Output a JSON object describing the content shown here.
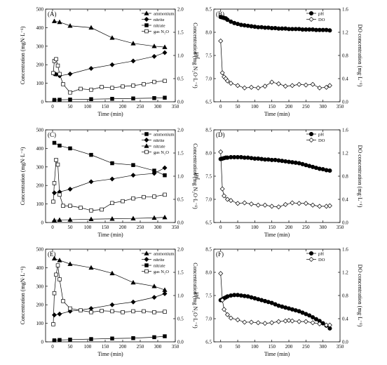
{
  "chart_data": [
    {
      "panel": "(A)",
      "type": "line",
      "xlabel": "Time (min)",
      "ylabel_left": "Concentration (mgN·L⁻¹)",
      "ylabel_right": "Concentration (mg N₂O·L⁻¹)",
      "xlim": [
        -20,
        350
      ],
      "xticks": [
        0,
        50,
        100,
        150,
        200,
        250,
        300,
        350
      ],
      "ylim_left": [
        0,
        500
      ],
      "yticks_left": [
        0,
        100,
        200,
        300,
        400,
        500
      ],
      "ylim_right": [
        0,
        2.0
      ],
      "yticks_right": [
        "0.0",
        "0.5",
        "1.0",
        "1.5",
        "2.0"
      ],
      "legend_position": "top-right",
      "series": [
        {
          "name": "ammonium",
          "marker": "triangle-filled",
          "axis": "left",
          "x": [
            5,
            20,
            50,
            110,
            170,
            230,
            290,
            320
          ],
          "y": [
            435,
            430,
            410,
            400,
            345,
            315,
            300,
            295
          ]
        },
        {
          "name": "nitrite",
          "marker": "diamond-filled",
          "axis": "left",
          "x": [
            5,
            10,
            20,
            50,
            110,
            170,
            230,
            290,
            320
          ],
          "y": [
            150,
            148,
            140,
            150,
            180,
            200,
            220,
            245,
            265
          ]
        },
        {
          "name": "nitrate",
          "marker": "square-filled",
          "axis": "left",
          "x": [
            5,
            20,
            50,
            110,
            170,
            230,
            290,
            320
          ],
          "y": [
            10,
            11,
            12,
            14,
            16,
            18,
            20,
            22
          ]
        },
        {
          "name": "gas N₂O",
          "marker": "square-open",
          "axis": "right",
          "x": [
            2,
            5,
            10,
            15,
            20,
            30,
            50,
            80,
            110,
            140,
            170,
            200,
            230,
            260,
            290,
            320
          ],
          "y": [
            0.62,
            0.88,
            0.92,
            0.78,
            0.6,
            0.38,
            0.2,
            0.28,
            0.26,
            0.32,
            0.3,
            0.33,
            0.35,
            0.38,
            0.43,
            0.45
          ]
        }
      ]
    },
    {
      "panel": "(B)",
      "type": "line",
      "xlabel": "Time (min)",
      "ylabel_left": "pH",
      "ylabel_right": "DO concentration (mg·L⁻¹)",
      "xlim": [
        -20,
        350
      ],
      "xticks": [
        0,
        50,
        100,
        150,
        200,
        250,
        300,
        350
      ],
      "ylim_left": [
        6.5,
        8.5
      ],
      "yticks_left": [
        "6.5",
        "7.0",
        "7.5",
        "8.0",
        "8.5"
      ],
      "ylim_right": [
        0,
        1.6
      ],
      "yticks_right": [
        "0.0",
        "0.4",
        "0.8",
        "1.2",
        "1.6"
      ],
      "legend_position": "top-right",
      "series": [
        {
          "name": "pH",
          "marker": "circle-filled",
          "axis": "left",
          "x": [
            0,
            5,
            10,
            15,
            20,
            30,
            40,
            50,
            60,
            70,
            80,
            90,
            100,
            110,
            120,
            130,
            140,
            150,
            160,
            170,
            180,
            190,
            200,
            210,
            220,
            230,
            240,
            250,
            260,
            270,
            280,
            290,
            300,
            310,
            320
          ],
          "y": [
            8.33,
            8.32,
            8.31,
            8.3,
            8.27,
            8.23,
            8.2,
            8.18,
            8.16,
            8.15,
            8.14,
            8.13,
            8.12,
            8.11,
            8.11,
            8.1,
            8.1,
            8.09,
            8.09,
            8.08,
            8.08,
            8.08,
            8.07,
            8.07,
            8.07,
            8.07,
            8.06,
            8.06,
            8.06,
            8.06,
            8.05,
            8.05,
            8.05,
            8.05,
            8.04
          ]
        },
        {
          "name": "DO",
          "marker": "diamond-open",
          "axis": "right",
          "x": [
            0,
            5,
            10,
            15,
            20,
            30,
            50,
            70,
            90,
            110,
            130,
            150,
            170,
            190,
            210,
            230,
            250,
            270,
            290,
            310,
            320
          ],
          "y": [
            1.05,
            0.5,
            0.43,
            0.4,
            0.36,
            0.32,
            0.28,
            0.24,
            0.25,
            0.24,
            0.27,
            0.34,
            0.31,
            0.27,
            0.28,
            0.3,
            0.29,
            0.3,
            0.24,
            0.25,
            0.28
          ]
        }
      ]
    },
    {
      "panel": "(C)",
      "type": "line",
      "xlabel": "Time (min)",
      "ylabel_left": "Concentration (mgN·L⁻¹)",
      "ylabel_right": "Concentration (mg N₂O·L⁻¹)",
      "xlim": [
        -20,
        350
      ],
      "xticks": [
        0,
        50,
        100,
        150,
        200,
        250,
        300,
        350
      ],
      "ylim_left": [
        0,
        500
      ],
      "yticks_left": [
        0,
        100,
        200,
        300,
        400,
        500
      ],
      "ylim_right": [
        0,
        2.0
      ],
      "yticks_right": [
        "0.0",
        "0.5",
        "1.0",
        "1.5",
        "2.0"
      ],
      "legend_position": "top-right",
      "series": [
        {
          "name": "ammonium",
          "marker": "square-filled",
          "axis": "left",
          "x": [
            5,
            20,
            50,
            110,
            170,
            230,
            290,
            320
          ],
          "y": [
            430,
            415,
            400,
            365,
            320,
            310,
            280,
            255
          ]
        },
        {
          "name": "nitrite",
          "marker": "diamond-filled",
          "axis": "left",
          "x": [
            5,
            20,
            50,
            110,
            170,
            230,
            290,
            320
          ],
          "y": [
            160,
            165,
            180,
            220,
            235,
            255,
            265,
            295
          ]
        },
        {
          "name": "nitrate",
          "marker": "triangle-filled",
          "axis": "left",
          "x": [
            5,
            20,
            50,
            110,
            170,
            230,
            290,
            320
          ],
          "y": [
            12,
            14,
            15,
            18,
            20,
            22,
            25,
            28
          ]
        },
        {
          "name": "gas N₂O",
          "marker": "square-open",
          "axis": "right",
          "x": [
            2,
            5,
            10,
            15,
            20,
            30,
            50,
            80,
            110,
            140,
            170,
            200,
            230,
            260,
            290,
            320
          ],
          "y": [
            0.45,
            0.85,
            1.35,
            1.25,
            0.6,
            0.36,
            0.36,
            0.32,
            0.26,
            0.28,
            0.42,
            0.46,
            0.52,
            0.55,
            0.56,
            0.6
          ]
        }
      ]
    },
    {
      "panel": "(D)",
      "type": "line",
      "xlabel": "Time (min)",
      "ylabel_left": "pH",
      "ylabel_right": "DO concentration (mg·L⁻¹)",
      "xlim": [
        -20,
        350
      ],
      "xticks": [
        0,
        50,
        100,
        150,
        200,
        250,
        300,
        350
      ],
      "ylim_left": [
        6.5,
        8.5
      ],
      "yticks_left": [
        "6.5",
        "7.0",
        "7.5",
        "8.0",
        "8.5"
      ],
      "ylim_right": [
        0,
        1.6
      ],
      "yticks_right": [
        "0.0",
        "0.4",
        "0.8",
        "1.2",
        "1.6"
      ],
      "legend_position": "top-right",
      "series": [
        {
          "name": "pH",
          "marker": "circle-filled",
          "axis": "left",
          "x": [
            0,
            5,
            10,
            15,
            20,
            30,
            40,
            50,
            60,
            70,
            80,
            90,
            100,
            110,
            120,
            130,
            140,
            150,
            160,
            170,
            180,
            190,
            200,
            210,
            220,
            230,
            240,
            250,
            260,
            270,
            280,
            290,
            300,
            310,
            320
          ],
          "y": [
            7.87,
            7.88,
            7.89,
            7.9,
            7.9,
            7.91,
            7.91,
            7.91,
            7.91,
            7.9,
            7.9,
            7.89,
            7.88,
            7.88,
            7.87,
            7.86,
            7.86,
            7.85,
            7.85,
            7.84,
            7.83,
            7.82,
            7.81,
            7.8,
            7.79,
            7.78,
            7.76,
            7.74,
            7.72,
            7.7,
            7.68,
            7.66,
            7.65,
            7.63,
            7.62
          ]
        },
        {
          "name": "DO",
          "marker": "diamond-open",
          "axis": "right",
          "x": [
            0,
            5,
            10,
            20,
            30,
            50,
            70,
            90,
            110,
            130,
            150,
            170,
            190,
            210,
            230,
            250,
            270,
            290,
            310,
            320
          ],
          "y": [
            1.22,
            0.58,
            0.46,
            0.4,
            0.38,
            0.33,
            0.34,
            0.32,
            0.3,
            0.3,
            0.28,
            0.27,
            0.31,
            0.34,
            0.33,
            0.33,
            0.3,
            0.28,
            0.28,
            0.29
          ]
        }
      ]
    },
    {
      "panel": "(E)",
      "type": "line",
      "xlabel": "Time (min)",
      "ylabel_left": "Concentration (mgN·L⁻¹)",
      "ylabel_right": "Concentration (mg N₂O·L⁻¹)",
      "xlim": [
        -20,
        350
      ],
      "xticks": [
        0,
        50,
        100,
        150,
        200,
        250,
        300,
        350
      ],
      "ylim_left": [
        0,
        500
      ],
      "yticks_left": [
        0,
        100,
        200,
        300,
        400,
        500
      ],
      "ylim_right": [
        0,
        2.0
      ],
      "yticks_right": [
        "0.0",
        "0.5",
        "1.0",
        "1.5",
        "2.0"
      ],
      "legend_position": "top-right",
      "series": [
        {
          "name": "ammonium",
          "marker": "triangle-filled",
          "axis": "left",
          "x": [
            5,
            20,
            50,
            110,
            170,
            230,
            290,
            320
          ],
          "y": [
            450,
            440,
            420,
            400,
            370,
            320,
            300,
            280
          ]
        },
        {
          "name": "nitrite",
          "marker": "diamond-filled",
          "axis": "left",
          "x": [
            5,
            20,
            50,
            110,
            170,
            230,
            290,
            320
          ],
          "y": [
            145,
            150,
            165,
            180,
            200,
            215,
            240,
            260
          ]
        },
        {
          "name": "nitrate",
          "marker": "square-filled",
          "axis": "left",
          "x": [
            5,
            20,
            50,
            110,
            170,
            230,
            290,
            320
          ],
          "y": [
            8,
            10,
            12,
            15,
            18,
            20,
            25,
            30
          ]
        },
        {
          "name": "gas N₂O",
          "marker": "square-open",
          "axis": "right",
          "x": [
            2,
            5,
            10,
            15,
            20,
            30,
            50,
            80,
            110,
            140,
            170,
            200,
            230,
            260,
            290,
            320
          ],
          "y": [
            0.38,
            1.05,
            1.45,
            1.65,
            1.35,
            0.88,
            0.72,
            0.68,
            0.64,
            0.67,
            0.66,
            0.64,
            0.66,
            0.66,
            0.64,
            0.65
          ]
        }
      ]
    },
    {
      "panel": "(F)",
      "type": "line",
      "xlabel": "Time (min)",
      "ylabel_left": "pH",
      "ylabel_right": "DO concentration (mg·L⁻¹)",
      "xlim": [
        -20,
        350
      ],
      "xticks": [
        0,
        50,
        100,
        150,
        200,
        250,
        300,
        350
      ],
      "ylim_left": [
        6.5,
        8.5
      ],
      "yticks_left": [
        "6.5",
        "7.0",
        "7.5",
        "8.0",
        "8.5"
      ],
      "ylim_right": [
        0,
        1.6
      ],
      "yticks_right": [
        "0.0",
        "0.4",
        "0.8",
        "1.2",
        "1.6"
      ],
      "legend_position": "top-right",
      "series": [
        {
          "name": "pH",
          "marker": "circle-filled",
          "axis": "left",
          "x": [
            0,
            5,
            10,
            15,
            20,
            30,
            40,
            50,
            60,
            70,
            80,
            90,
            100,
            110,
            120,
            130,
            140,
            150,
            160,
            170,
            180,
            190,
            200,
            210,
            220,
            230,
            240,
            250,
            260,
            270,
            280,
            290,
            300,
            310,
            320
          ],
          "y": [
            7.4,
            7.42,
            7.44,
            7.46,
            7.48,
            7.5,
            7.51,
            7.51,
            7.5,
            7.49,
            7.48,
            7.46,
            7.44,
            7.42,
            7.4,
            7.38,
            7.36,
            7.34,
            7.31,
            7.28,
            7.26,
            7.24,
            7.22,
            7.2,
            7.18,
            7.16,
            7.13,
            7.1,
            7.07,
            7.03,
            6.99,
            6.95,
            6.9,
            6.85,
            6.79
          ]
        },
        {
          "name": "DO",
          "marker": "diamond-open",
          "axis": "right",
          "x": [
            0,
            5,
            10,
            20,
            30,
            50,
            70,
            90,
            110,
            130,
            150,
            170,
            190,
            200,
            210,
            230,
            250,
            270,
            290,
            310,
            320
          ],
          "y": [
            1.18,
            0.72,
            0.56,
            0.47,
            0.41,
            0.38,
            0.34,
            0.34,
            0.33,
            0.32,
            0.33,
            0.35,
            0.36,
            0.37,
            0.36,
            0.35,
            0.35,
            0.33,
            0.31,
            0.29,
            0.29
          ]
        }
      ]
    }
  ]
}
